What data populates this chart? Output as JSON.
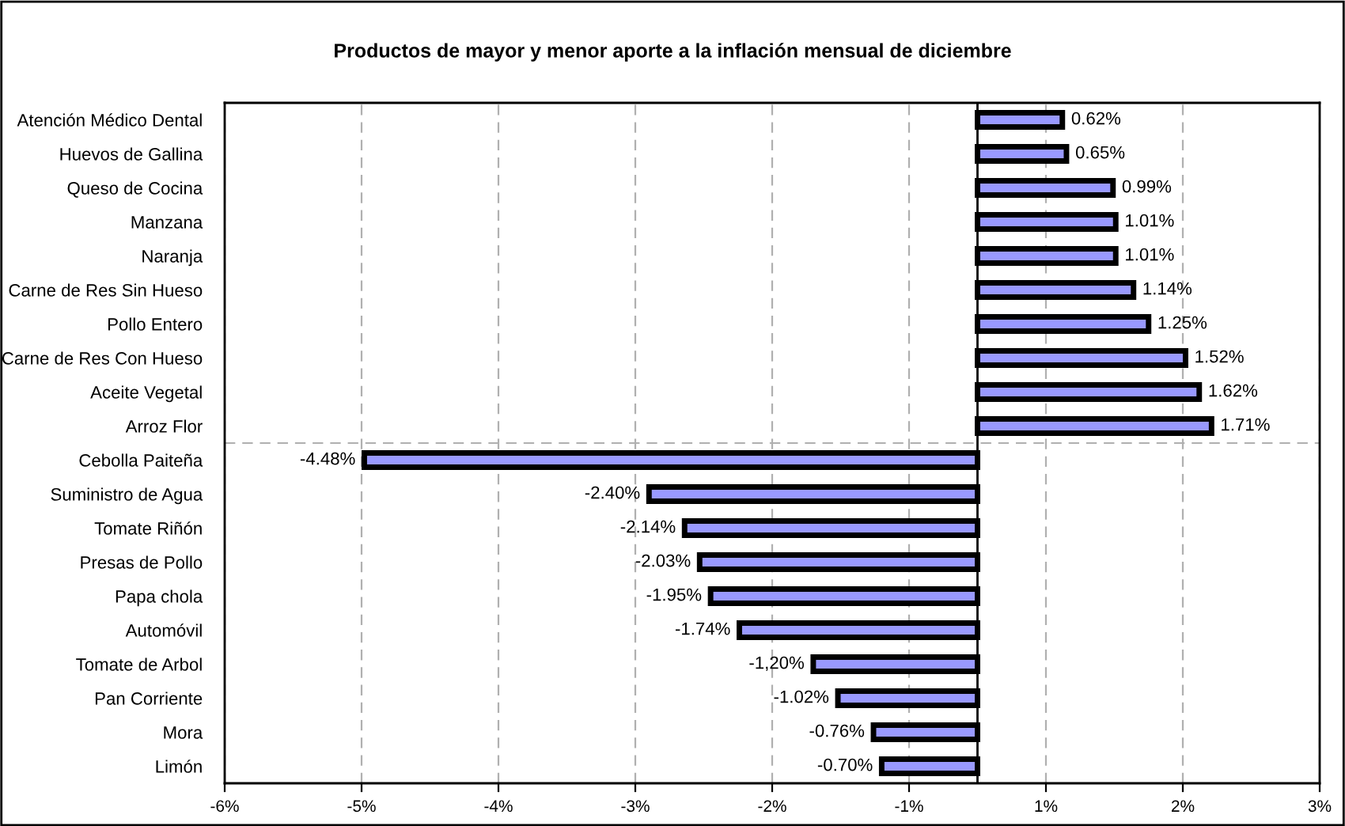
{
  "chart_data": {
    "type": "bar",
    "orientation": "horizontal",
    "title": "Productos de mayor y menor aporte a la inflación mensual de diciembre",
    "categories": [
      "Atención Médico Dental",
      "Huevos de Gallina",
      "Queso de Cocina",
      "Manzana",
      "Naranja",
      "Carne de Res Sin Hueso",
      "Pollo Entero",
      "Carne de Res Con Hueso",
      "Aceite Vegetal",
      "Arroz Flor",
      "Cebolla Paiteña",
      "Suministro de Agua",
      "Tomate Riñón",
      "Presas de Pollo",
      "Papa chola",
      "Automóvil",
      "Tomate de Arbol",
      "Pan Corriente",
      "Mora",
      "Limón"
    ],
    "values": [
      0.62,
      0.65,
      0.99,
      1.01,
      1.01,
      1.14,
      1.25,
      1.52,
      1.62,
      1.71,
      -4.48,
      -2.4,
      -2.14,
      -2.03,
      -1.95,
      -1.74,
      -1.2,
      -1.02,
      -0.76,
      -0.7
    ],
    "value_labels": [
      "0.62%",
      "0.65%",
      "0.99%",
      "1.01%",
      "1.01%",
      "1.14%",
      "1.25%",
      "1.52%",
      "1.62%",
      "1.71%",
      "-4.48%",
      "-2.40%",
      "-2.14%",
      "-2.03%",
      "-1.95%",
      "-1.74%",
      "-1,20%",
      "-1.02%",
      "-0.76%",
      "-0.70%"
    ],
    "color": "#9999ff",
    "xlim": [
      -5.5,
      2.5
    ],
    "xticks": [
      {
        "value": -5.5,
        "label": "-6%"
      },
      {
        "value": -4.5,
        "label": "-5%"
      },
      {
        "value": -3.5,
        "label": "-4%"
      },
      {
        "value": -2.5,
        "label": "-3%"
      },
      {
        "value": -1.5,
        "label": "-2%"
      },
      {
        "value": -0.5,
        "label": "-1%"
      },
      {
        "value": 0.5,
        "label": "1%"
      },
      {
        "value": 1.5,
        "label": "2%"
      },
      {
        "value": 2.5,
        "label": "3%"
      }
    ],
    "grid": "x",
    "ref_lines": [
      {
        "axis": "x",
        "value": 0,
        "color": "#000000",
        "line_style": "solid"
      }
    ]
  }
}
